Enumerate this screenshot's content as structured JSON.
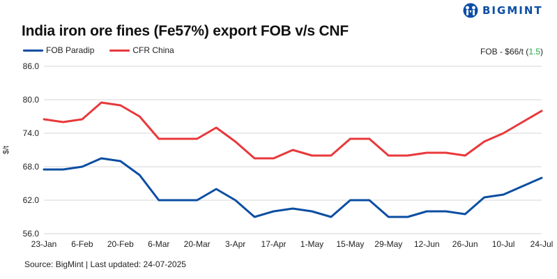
{
  "brand": {
    "name": "BIGMINT",
    "color": "#0d4ea6"
  },
  "header": {
    "title": "India iron ore fines (Fe57%) export FOB v/s CNF"
  },
  "legend": [
    {
      "label": "FOB Paradip",
      "color": "#0b4ea2"
    },
    {
      "label": "CFR China",
      "color": "#e8383b"
    }
  ],
  "fob_note": {
    "prefix": "FOB - $66/t (",
    "change": "1.5",
    "suffix": ")",
    "change_color": "#22a64a"
  },
  "footer": {
    "source": "Source: BigMint | Last updated: 24-07-2025"
  },
  "chart_data": {
    "type": "line",
    "title": "India iron ore fines (Fe57%) export FOB v/s CNF",
    "xlabel": "",
    "ylabel": "$/t",
    "ylim": [
      56,
      86
    ],
    "yticks": [
      "86.0",
      "80.0",
      "74.0",
      "68.0",
      "62.0",
      "56.0"
    ],
    "ytick_values": [
      86,
      80,
      74,
      68,
      62,
      56
    ],
    "grid": true,
    "legend_position": "top-left",
    "x_tick_labels": [
      "23-Jan",
      "6-Feb",
      "20-Feb",
      "6-Mar",
      "20-Mar",
      "3-Apr",
      "17-Apr",
      "1-May",
      "15-May",
      "29-May",
      "12-Jun",
      "26-Jun",
      "10-Jul",
      "24-Jul"
    ],
    "x": [
      "23-Jan",
      "30-Jan",
      "6-Feb",
      "13-Feb",
      "20-Feb",
      "27-Feb",
      "6-Mar",
      "13-Mar",
      "20-Mar",
      "27-Mar",
      "3-Apr",
      "10-Apr",
      "17-Apr",
      "24-Apr",
      "1-May",
      "8-May",
      "15-May",
      "22-May",
      "29-May",
      "5-Jun",
      "12-Jun",
      "19-Jun",
      "26-Jun",
      "3-Jul",
      "10-Jul",
      "17-Jul",
      "24-Jul"
    ],
    "series": [
      {
        "name": "FOB Paradip",
        "color": "#0b4ea2",
        "values": [
          67.5,
          67.5,
          68,
          69.5,
          69,
          66.5,
          62,
          62,
          62,
          64,
          62,
          59,
          60,
          60.5,
          60,
          59,
          62,
          62,
          59,
          59,
          60,
          60,
          59.5,
          62.5,
          63,
          64.5,
          66
        ]
      },
      {
        "name": "CFR China",
        "color": "#e8383b",
        "values": [
          76.5,
          76,
          76.5,
          79.5,
          79,
          77,
          73,
          73,
          73,
          75,
          72.5,
          69.5,
          69.5,
          71,
          70,
          70,
          73,
          73,
          70,
          70,
          70.5,
          70.5,
          70,
          72.5,
          74,
          76,
          78
        ]
      }
    ],
    "annotations": [
      "FOB - $66/t (1.5)"
    ]
  }
}
